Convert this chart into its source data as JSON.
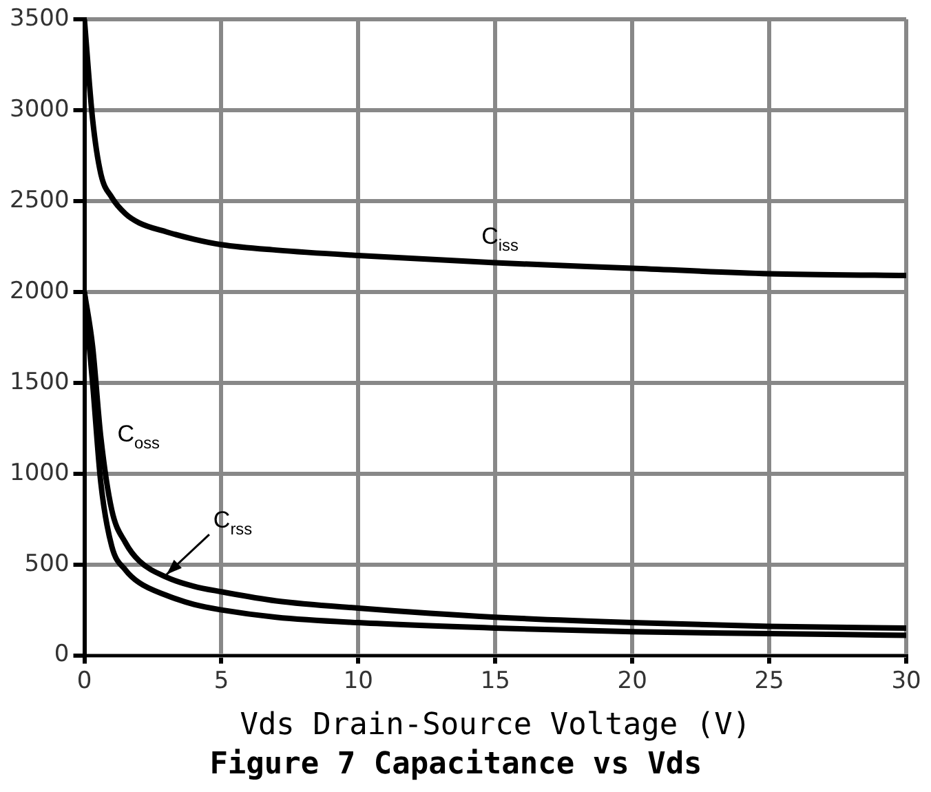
{
  "chart_data": {
    "type": "line",
    "title": "Figure 7 Capacitance vs Vds",
    "xlabel": "Vds Drain-Source Voltage (V)",
    "xlim": [
      0,
      30
    ],
    "xticks": [
      0,
      5,
      10,
      15,
      20,
      25,
      30
    ],
    "ylim": [
      0,
      3500
    ],
    "yticks": [
      0,
      500,
      1000,
      1500,
      2000,
      2500,
      3000,
      3500
    ],
    "grid": true,
    "legend": false,
    "marker": "none",
    "line_style": "solid",
    "series": [
      {
        "name": "C$_{iss}$",
        "color": "#000000",
        "x": [
          0,
          0.3,
          0.6,
          1,
          1.5,
          2,
          3,
          4,
          5,
          7,
          10,
          15,
          20,
          25,
          30
        ],
        "values": [
          3500,
          2950,
          2650,
          2520,
          2430,
          2380,
          2330,
          2290,
          2260,
          2230,
          2200,
          2160,
          2130,
          2100,
          2090
        ]
      },
      {
        "name": "C$_{oss}$",
        "color": "#000000",
        "x": [
          0,
          0.3,
          0.6,
          1,
          1.5,
          2,
          3,
          4,
          5,
          7,
          10,
          15,
          20,
          25,
          30
        ],
        "values": [
          2000,
          1500,
          950,
          600,
          470,
          400,
          330,
          280,
          250,
          210,
          180,
          150,
          130,
          120,
          110
        ]
      },
      {
        "name": "C$_{rss}$",
        "color": "#000000",
        "x": [
          0,
          0.3,
          0.6,
          1,
          1.5,
          2,
          3,
          4,
          5,
          7,
          10,
          15,
          20,
          25,
          30
        ],
        "values": [
          2000,
          1700,
          1200,
          800,
          620,
          520,
          430,
          380,
          350,
          300,
          260,
          210,
          180,
          160,
          150
        ]
      }
    ]
  }
}
